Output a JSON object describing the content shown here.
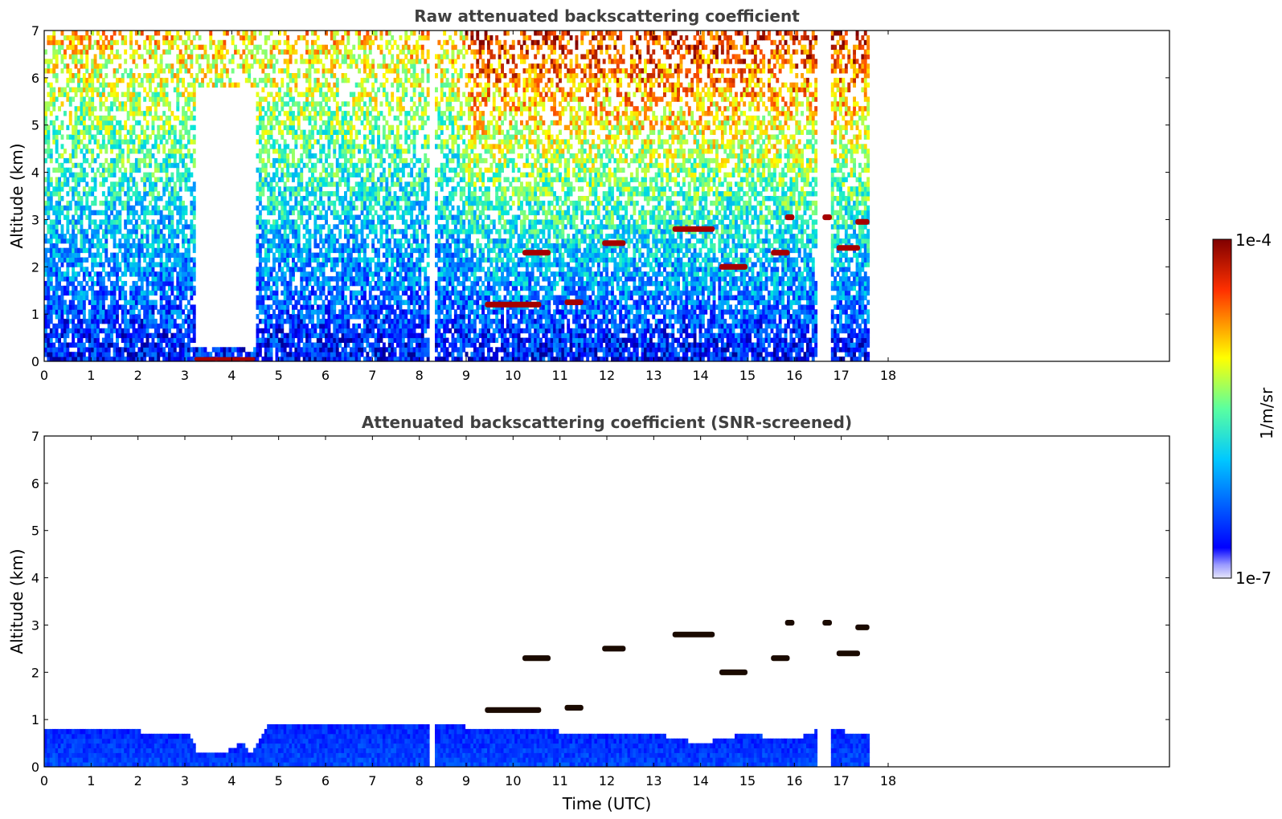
{
  "figure": {
    "xlabel": "Time (UTC)",
    "x_ticks": [
      "0",
      "1",
      "2",
      "3",
      "4",
      "5",
      "6",
      "7",
      "8",
      "9",
      "10",
      "11",
      "12",
      "13",
      "14",
      "15",
      "16",
      "17",
      "18"
    ],
    "y_ticks": [
      "0",
      "1",
      "2",
      "3",
      "4",
      "5",
      "6",
      "7"
    ]
  },
  "colorbar": {
    "label": "1/m/sr",
    "max_label": "1e-4",
    "min_label": "1e-7",
    "colormap": "jet",
    "min_color": "#e6e6fa",
    "scale": "log"
  },
  "chart_data": [
    {
      "type": "heatmap",
      "title": "Raw attenuated backscattering coefficient",
      "xlabel": "",
      "ylabel": "Altitude (km)",
      "xlim": [
        0,
        24
      ],
      "ylim": [
        0,
        7
      ],
      "data_end_time": 17.6,
      "colorbar_range": [
        1e-07,
        0.0001
      ],
      "gaps": [
        [
          8.2,
          8.35
        ],
        [
          16.5,
          16.8
        ]
      ],
      "features": [
        {
          "kind": "no-signal region",
          "t_start": 3.2,
          "t_end": 4.5,
          "alt_min": 0.25,
          "alt_max": 5.8
        },
        {
          "kind": "surface layer",
          "t_start": 3.2,
          "t_end": 4.5,
          "alt": 0.05
        },
        {
          "kind": "cloud layer",
          "t_start": 9.4,
          "t_end": 10.6,
          "alt": 1.2
        },
        {
          "kind": "cloud layer",
          "t_start": 11.1,
          "t_end": 11.5,
          "alt": 1.25
        },
        {
          "kind": "cloud layer",
          "t_start": 10.2,
          "t_end": 10.8,
          "alt": 2.3
        },
        {
          "kind": "cloud layer",
          "t_start": 11.9,
          "t_end": 12.4,
          "alt": 2.5
        },
        {
          "kind": "cloud layer",
          "t_start": 13.4,
          "t_end": 14.3,
          "alt": 2.8
        },
        {
          "kind": "cloud layer",
          "t_start": 14.4,
          "t_end": 15.0,
          "alt": 2.0
        },
        {
          "kind": "cloud layer",
          "t_start": 15.5,
          "t_end": 15.9,
          "alt": 2.3
        },
        {
          "kind": "cloud layer",
          "t_start": 15.8,
          "t_end": 16.0,
          "alt": 3.05
        },
        {
          "kind": "cloud layer",
          "t_start": 16.6,
          "t_end": 16.8,
          "alt": 3.05
        },
        {
          "kind": "cloud layer",
          "t_start": 17.3,
          "t_end": 17.6,
          "alt": 2.95
        },
        {
          "kind": "cloud layer",
          "t_start": 16.9,
          "t_end": 17.4,
          "alt": 2.4
        }
      ]
    },
    {
      "type": "heatmap",
      "title": "Attenuated backscattering coefficient (SNR-screened)",
      "xlabel": "Time (UTC)",
      "ylabel": "Altitude (km)",
      "xlim": [
        0,
        24
      ],
      "ylim": [
        0,
        7
      ],
      "data_end_time": 17.6,
      "colorbar_range": [
        1e-07,
        0.0001
      ],
      "gaps": [
        [
          8.2,
          8.35
        ],
        [
          16.5,
          16.8
        ]
      ],
      "boundary_layer_top": [
        [
          0,
          0.85
        ],
        [
          3.1,
          0.7
        ],
        [
          3.3,
          0.25
        ],
        [
          3.9,
          0.3
        ],
        [
          4.2,
          0.55
        ],
        [
          4.4,
          0.3
        ],
        [
          4.8,
          0.9
        ],
        [
          6,
          0.95
        ],
        [
          8,
          0.9
        ],
        [
          10,
          0.8
        ],
        [
          11,
          0.75
        ],
        [
          12,
          0.65
        ],
        [
          13,
          0.7
        ],
        [
          14,
          0.5
        ],
        [
          15,
          0.7
        ],
        [
          16,
          0.55
        ],
        [
          16.5,
          0.8
        ],
        [
          17.6,
          0.7
        ]
      ],
      "features": [
        {
          "kind": "cloud layer",
          "t_start": 9.4,
          "t_end": 10.6,
          "alt": 1.2
        },
        {
          "kind": "cloud layer",
          "t_start": 11.1,
          "t_end": 11.5,
          "alt": 1.25
        },
        {
          "kind": "cloud layer",
          "t_start": 10.2,
          "t_end": 10.8,
          "alt": 2.3
        },
        {
          "kind": "cloud layer",
          "t_start": 11.9,
          "t_end": 12.4,
          "alt": 2.5
        },
        {
          "kind": "cloud layer",
          "t_start": 13.4,
          "t_end": 14.3,
          "alt": 2.8
        },
        {
          "kind": "cloud layer",
          "t_start": 14.4,
          "t_end": 15.0,
          "alt": 2.0
        },
        {
          "kind": "cloud layer",
          "t_start": 15.5,
          "t_end": 15.9,
          "alt": 2.3
        },
        {
          "kind": "cloud layer",
          "t_start": 15.8,
          "t_end": 16.0,
          "alt": 3.05
        },
        {
          "kind": "cloud layer",
          "t_start": 16.6,
          "t_end": 16.8,
          "alt": 3.05
        },
        {
          "kind": "cloud layer",
          "t_start": 17.3,
          "t_end": 17.6,
          "alt": 2.95
        },
        {
          "kind": "cloud layer",
          "t_start": 16.9,
          "t_end": 17.4,
          "alt": 2.4
        }
      ]
    }
  ]
}
